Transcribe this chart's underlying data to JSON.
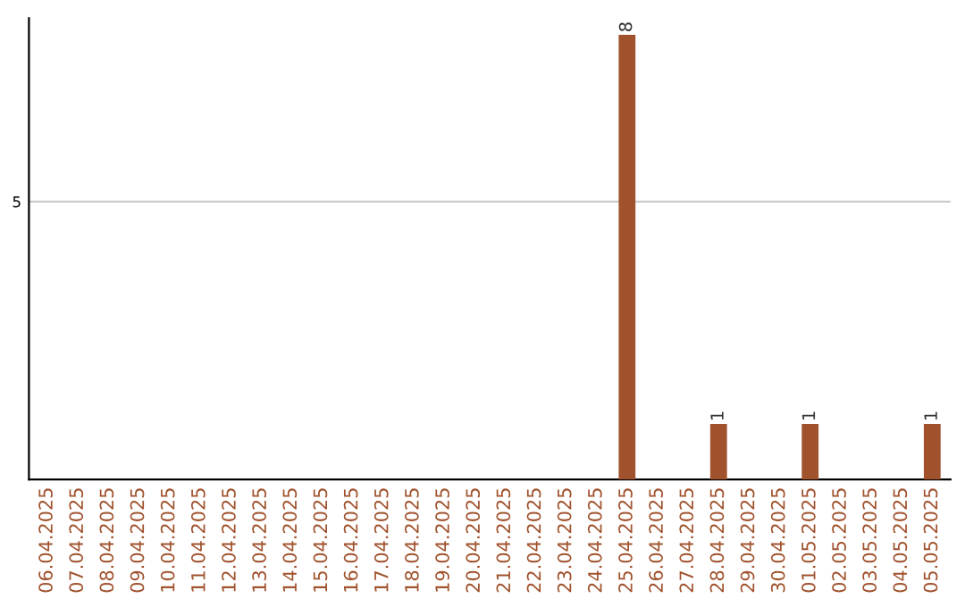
{
  "chart_data": {
    "type": "bar",
    "categories": [
      "06.04.2025",
      "07.04.2025",
      "08.04.2025",
      "09.04.2025",
      "10.04.2025",
      "11.04.2025",
      "12.04.2025",
      "13.04.2025",
      "14.04.2025",
      "15.04.2025",
      "16.04.2025",
      "17.04.2025",
      "18.04.2025",
      "19.04.2025",
      "20.04.2025",
      "21.04.2025",
      "22.04.2025",
      "23.04.2025",
      "24.04.2025",
      "25.04.2025",
      "26.04.2025",
      "27.04.2025",
      "28.04.2025",
      "29.04.2025",
      "30.04.2025",
      "01.05.2025",
      "02.05.2025",
      "03.05.2025",
      "04.05.2025",
      "05.05.2025"
    ],
    "values": [
      null,
      null,
      null,
      null,
      null,
      null,
      null,
      null,
      null,
      null,
      null,
      null,
      null,
      null,
      null,
      null,
      null,
      null,
      null,
      8,
      null,
      null,
      1,
      null,
      null,
      1,
      null,
      null,
      null,
      1
    ],
    "data_labels": true,
    "color": "#a0522d",
    "ylim": [
      0,
      8.3
    ],
    "yticks": [
      5
    ],
    "grid": "y"
  }
}
